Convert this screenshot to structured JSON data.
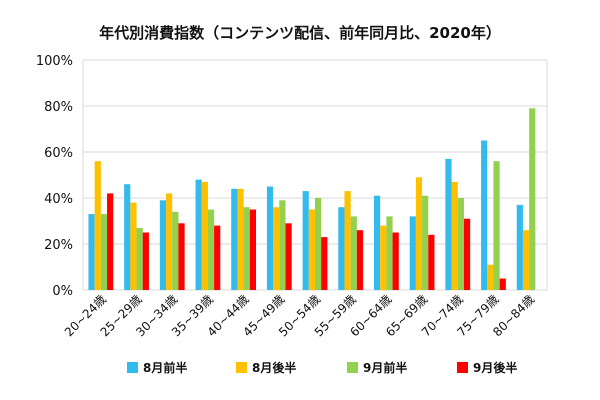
{
  "chart_data": {
    "type": "bar",
    "title": "年代別消費指数（コンテンツ配信、前年同月比、2020年）",
    "xlabel": "",
    "ylabel": "",
    "ylim": [
      0,
      100
    ],
    "yticks": [
      "0%",
      "20%",
      "40%",
      "60%",
      "80%",
      "100%"
    ],
    "grid": true,
    "legend_position": "bottom",
    "categories": [
      "20~24歳",
      "25~29歳",
      "30~34歳",
      "35~39歳",
      "40~44歳",
      "45~49歳",
      "50~54歳",
      "55~59歳",
      "60~64歳",
      "65~69歳",
      "70~74歳",
      "75~79歳",
      "80~84歳"
    ],
    "series": [
      {
        "name": "8月前半",
        "color": "#33bbee",
        "values": [
          33,
          46,
          39,
          48,
          44,
          45,
          43,
          36,
          41,
          32,
          57,
          65,
          37
        ]
      },
      {
        "name": "8月後半",
        "color": "#ffc000",
        "values": [
          56,
          38,
          42,
          47,
          44,
          36,
          35,
          43,
          28,
          49,
          47,
          11,
          26
        ]
      },
      {
        "name": "9月前半",
        "color": "#92d050",
        "values": [
          33,
          27,
          34,
          35,
          36,
          39,
          40,
          32,
          32,
          41,
          40,
          56,
          79
        ]
      },
      {
        "name": "9月後半",
        "color": "#ff0000",
        "values": [
          42,
          25,
          29,
          28,
          35,
          29,
          23,
          26,
          25,
          24,
          31,
          5,
          null
        ]
      }
    ]
  }
}
